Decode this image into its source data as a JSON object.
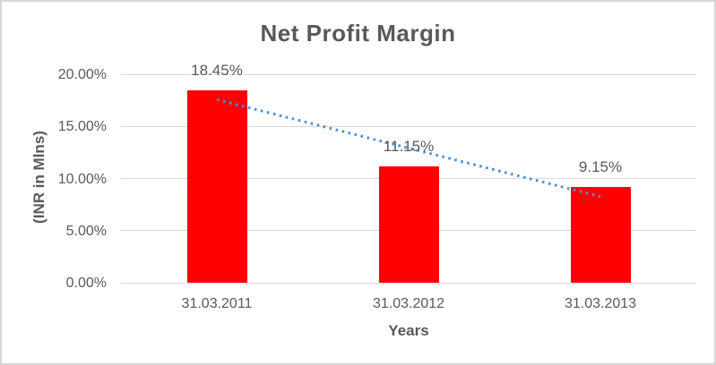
{
  "window": {
    "background_color": "#ffffff",
    "border_color": "#d6d6d6"
  },
  "chart_data": {
    "type": "bar",
    "title": "Net Profit Margin",
    "categories": [
      "31.03.2011",
      "31.03.2012",
      "31.03.2013"
    ],
    "values": [
      18.45,
      11.15,
      9.15
    ],
    "data_labels": [
      "18.45%",
      "11.15%",
      "9.15%"
    ],
    "bar_color": "#ff0000",
    "xlabel": "Years",
    "ylabel": "(INR in Mlns)",
    "ylim": [
      0,
      20
    ],
    "yticks": [
      {
        "label": "20.00%",
        "value": 20
      },
      {
        "label": "15.00%",
        "value": 15
      },
      {
        "label": "10.00%",
        "value": 10
      },
      {
        "label": "5.00%",
        "value": 5
      },
      {
        "label": "0.00%",
        "value": 0
      }
    ],
    "grid": true,
    "gridline_color": "#d9d9d9",
    "legend": "none",
    "text_color": "#595959",
    "trendline": {
      "type": "linear",
      "style": "dotted",
      "color": "#4a90d8"
    }
  }
}
